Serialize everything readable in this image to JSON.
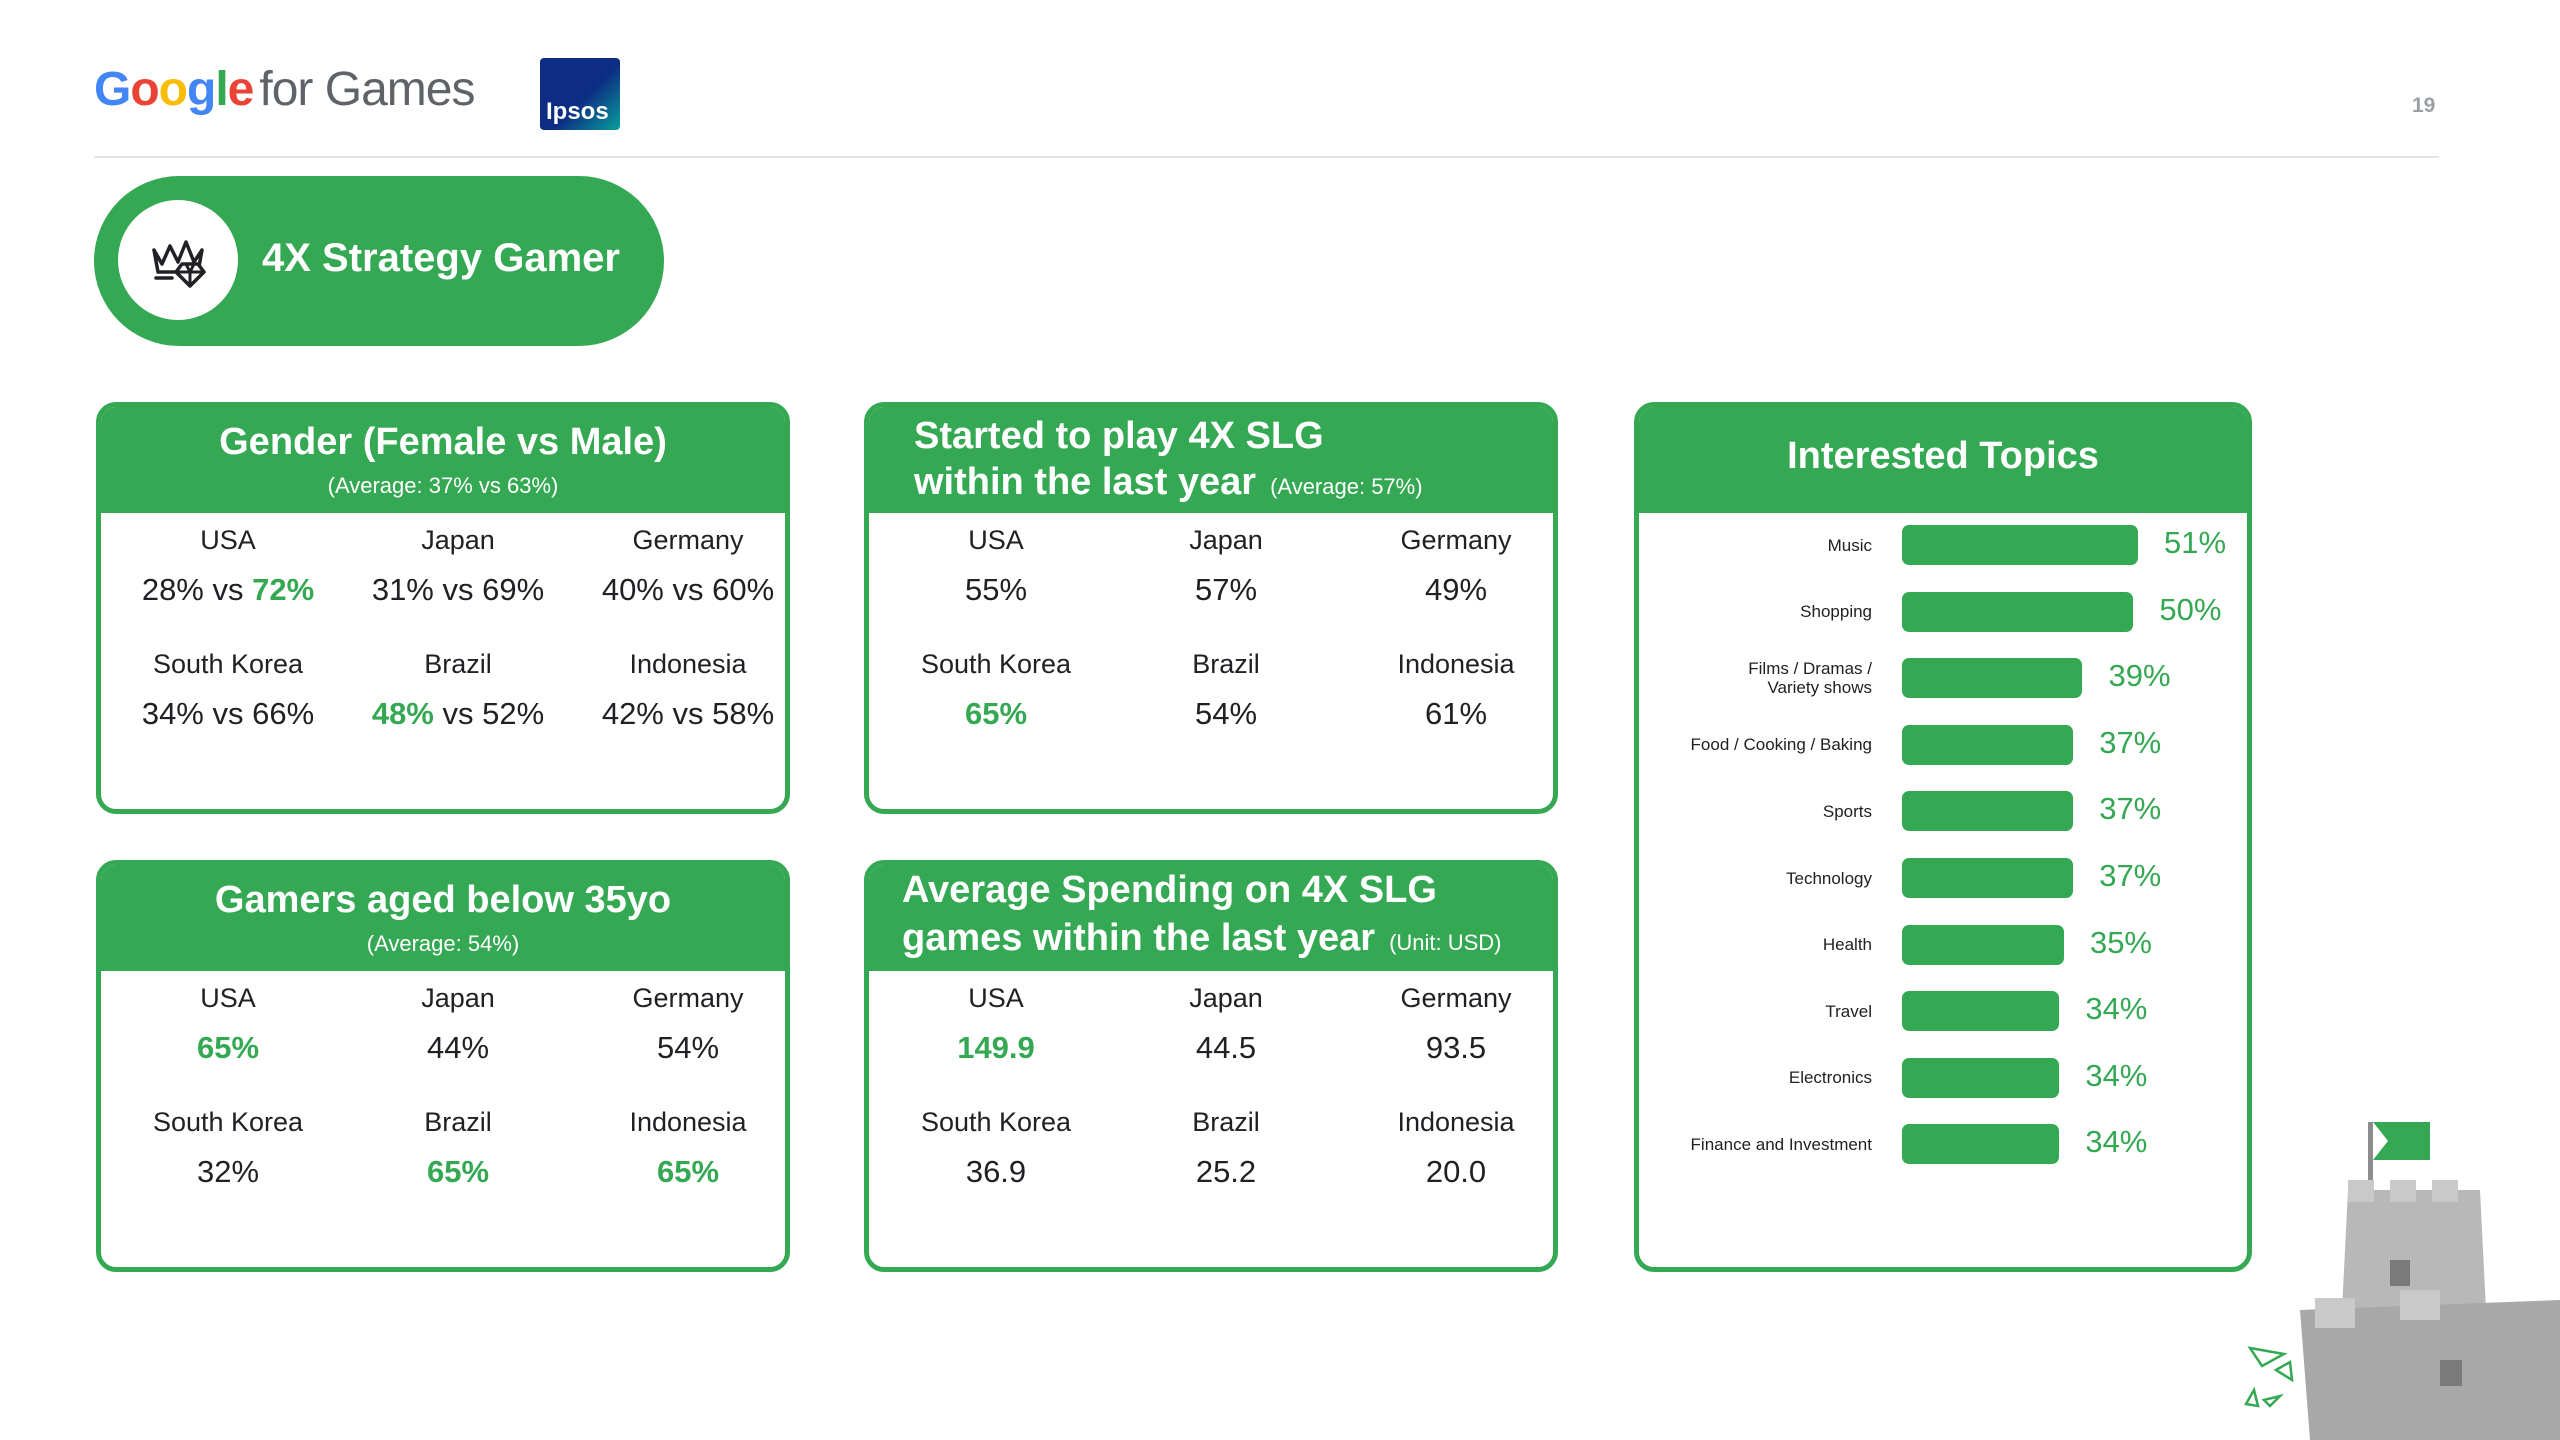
{
  "header": {
    "logo_google": "Google",
    "logo_rest": "for Games",
    "partner_logo": "Ipsos",
    "page_number": "19"
  },
  "segment": {
    "title": "4X Strategy Gamer",
    "icon": "crown-gem-icon"
  },
  "gender": {
    "title": "Gender (Female vs Male)",
    "subtitle": "(Average: 37% vs  63%)",
    "rows": [
      {
        "country": "USA",
        "female": "28%",
        "vs": "vs",
        "male": "72%",
        "highlight": "male"
      },
      {
        "country": "Japan",
        "female": "31%",
        "vs": "vs",
        "male": "69%",
        "highlight": "none"
      },
      {
        "country": "Germany",
        "female": "40%",
        "vs": "vs",
        "male": "60%",
        "highlight": "none"
      },
      {
        "country": "South Korea",
        "female": "34%",
        "vs": "vs",
        "male": "66%",
        "highlight": "none"
      },
      {
        "country": "Brazil",
        "female": "48%",
        "vs": "vs",
        "male": "52%",
        "highlight": "female"
      },
      {
        "country": "Indonesia",
        "female": "42%",
        "vs": "vs",
        "male": "58%",
        "highlight": "none"
      }
    ]
  },
  "started": {
    "title_line1": "Started to play 4X SLG",
    "title_line2": "within the last year",
    "note": "(Average: 57%)",
    "rows": [
      {
        "country": "USA",
        "value": "55%",
        "highlight": false
      },
      {
        "country": "Japan",
        "value": "57%",
        "highlight": false
      },
      {
        "country": "Germany",
        "value": "49%",
        "highlight": false
      },
      {
        "country": "South Korea",
        "value": "65%",
        "highlight": true
      },
      {
        "country": "Brazil",
        "value": "54%",
        "highlight": false
      },
      {
        "country": "Indonesia",
        "value": "61%",
        "highlight": false
      }
    ]
  },
  "aged": {
    "title": "Gamers aged below 35yo",
    "subtitle": "(Average: 54%)",
    "rows": [
      {
        "country": "USA",
        "value": "65%",
        "highlight": true
      },
      {
        "country": "Japan",
        "value": "44%",
        "highlight": false
      },
      {
        "country": "Germany",
        "value": "54%",
        "highlight": false
      },
      {
        "country": "South Korea",
        "value": "32%",
        "highlight": false
      },
      {
        "country": "Brazil",
        "value": "65%",
        "highlight": true
      },
      {
        "country": "Indonesia",
        "value": "65%",
        "highlight": true
      }
    ]
  },
  "spending": {
    "title_line1": "Average Spending on 4X SLG",
    "title_line2": "games within the last year",
    "note": "(Unit: USD)",
    "rows": [
      {
        "country": "USA",
        "value": "149.9",
        "highlight": true
      },
      {
        "country": "Japan",
        "value": "44.5",
        "highlight": false
      },
      {
        "country": "Germany",
        "value": "93.5",
        "highlight": false
      },
      {
        "country": "South Korea",
        "value": "36.9",
        "highlight": false
      },
      {
        "country": "Brazil",
        "value": "25.2",
        "highlight": false
      },
      {
        "country": "Indonesia",
        "value": "20.0",
        "highlight": false
      }
    ]
  },
  "topics": {
    "title": "Interested Topics"
  },
  "chart_data": {
    "type": "bar",
    "orientation": "horizontal",
    "title": "Interested Topics",
    "categories": [
      "Music",
      "Shopping",
      "Films / Dramas / Variety shows",
      "Food / Cooking / Baking",
      "Sports",
      "Technology",
      "Health",
      "Travel",
      "Electronics",
      "Finance and Investment"
    ],
    "label_lines": [
      [
        "Music"
      ],
      [
        "Shopping"
      ],
      [
        "Films / Dramas /",
        "Variety shows"
      ],
      [
        "Food / Cooking / Baking"
      ],
      [
        "Sports"
      ],
      [
        "Technology"
      ],
      [
        "Health"
      ],
      [
        "Travel"
      ],
      [
        "Electronics"
      ],
      [
        "Finance and Investment"
      ]
    ],
    "values": [
      51,
      50,
      39,
      37,
      37,
      37,
      35,
      34,
      34,
      34
    ],
    "value_labels": [
      "51%",
      "50%",
      "39%",
      "37%",
      "37%",
      "37%",
      "35%",
      "34%",
      "34%",
      "34%"
    ],
    "unit": "%",
    "xlim": [
      0,
      51
    ],
    "bar_color": "#34a853"
  },
  "colors": {
    "accent": "#34a853",
    "text": "#202124"
  }
}
